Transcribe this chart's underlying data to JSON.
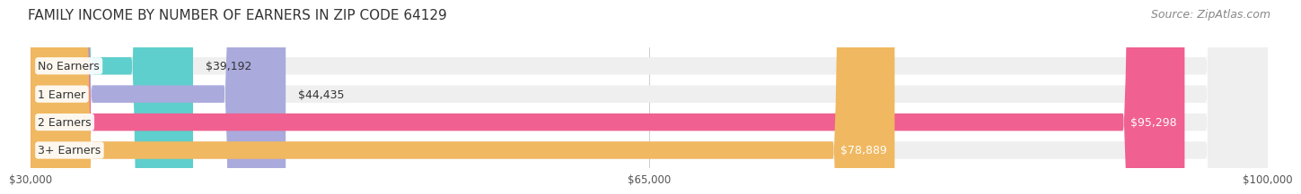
{
  "title": "FAMILY INCOME BY NUMBER OF EARNERS IN ZIP CODE 64129",
  "source": "Source: ZipAtlas.com",
  "categories": [
    "No Earners",
    "1 Earner",
    "2 Earners",
    "3+ Earners"
  ],
  "values": [
    39192,
    44435,
    95298,
    78889
  ],
  "bar_colors": [
    "#5ecfcc",
    "#aaaadd",
    "#f06090",
    "#f0b860"
  ],
  "bar_bg_color": "#efefef",
  "label_colors": [
    "#333333",
    "#333333",
    "#ffffff",
    "#ffffff"
  ],
  "xlim_min": 30000,
  "xlim_max": 100000,
  "xticks": [
    30000,
    65000,
    100000
  ],
  "xtick_labels": [
    "$30,000",
    "$65,000",
    "$100,000"
  ],
  "background_color": "#ffffff",
  "title_fontsize": 11,
  "source_fontsize": 9,
  "bar_height": 0.62,
  "bar_label_fontsize": 9,
  "category_fontsize": 9
}
